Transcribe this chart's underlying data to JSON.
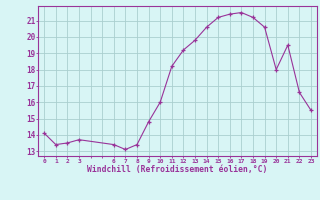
{
  "x": [
    0,
    1,
    2,
    3,
    6,
    7,
    8,
    9,
    10,
    11,
    12,
    13,
    14,
    15,
    16,
    17,
    18,
    19,
    20,
    21,
    22,
    23
  ],
  "y": [
    14.1,
    13.4,
    13.5,
    13.7,
    13.4,
    13.1,
    13.4,
    14.8,
    16.0,
    18.2,
    19.2,
    19.8,
    20.6,
    21.2,
    21.4,
    21.5,
    21.2,
    20.6,
    18.0,
    19.5,
    16.6,
    15.5
  ],
  "line_color": "#993399",
  "marker": "+",
  "bg_color": "#d8f5f5",
  "grid_color": "#aacfcf",
  "xlabel": "Windchill (Refroidissement éolien,°C)",
  "xlabel_color": "#993399",
  "tick_color": "#993399",
  "spine_color": "#993399",
  "ylim": [
    12.7,
    21.9
  ],
  "xlim": [
    -0.5,
    23.5
  ],
  "figsize": [
    3.2,
    2.0
  ],
  "dpi": 100,
  "yticks": [
    13,
    14,
    15,
    16,
    17,
    18,
    19,
    20,
    21
  ]
}
